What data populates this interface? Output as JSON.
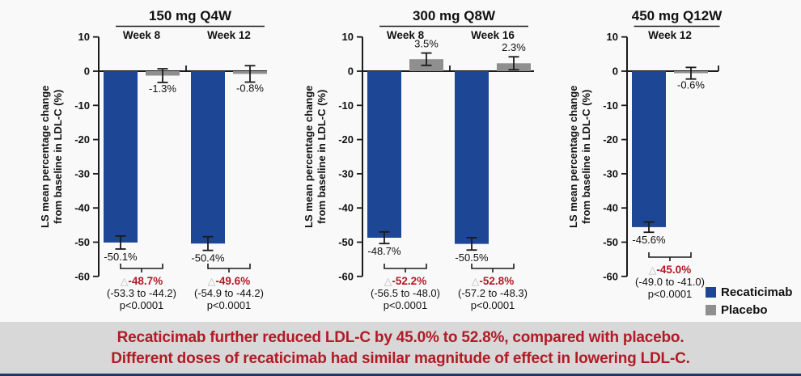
{
  "colors": {
    "recaticimab": "#1d4694",
    "placebo": "#8f8f8f",
    "axis": "#1a1a1a",
    "delta_red": "#b01b26",
    "triangle_gray": "#b8b8b8",
    "banner_bg": "#d8d8d8",
    "banner_text": "#b01b26",
    "bottom_bar": "#1f3864",
    "page_bg": "#f9f9f9"
  },
  "delta_symbol": "△",
  "ylabel": "LS mean percentage change from baseline in LDL-C (%)",
  "ylabel_lines": [
    "LS mean percentage change",
    "from baseline in LDL-C (%)"
  ],
  "legend": {
    "items": [
      {
        "label": "Recaticimab",
        "color_key": "recaticimab"
      },
      {
        "label": "Placebo",
        "color_key": "placebo"
      }
    ]
  },
  "banner": {
    "line1": "Recaticimab further reduced LDL-C by 45.0% to 52.8%, compared with placebo.",
    "line2": "Different doses of recaticimab had similar magnitude of effect in lowering LDL-C."
  },
  "chart_data": [
    {
      "type": "bar",
      "title": "150 mg Q4W",
      "ylabel": "LS mean percentage change from baseline in LDL-C (%)",
      "ylim": [
        -60,
        10
      ],
      "yticks": [
        10,
        0,
        -10,
        -20,
        -30,
        -40,
        -50,
        -60
      ],
      "series_order": [
        "Recaticimab",
        "Placebo"
      ],
      "groups": [
        {
          "label": "Week 8",
          "bars": [
            {
              "series": "Recaticimab",
              "value": -50.1,
              "label": "-50.1%",
              "err": 1.9
            },
            {
              "series": "Placebo",
              "value": -1.3,
              "label": "-1.3%",
              "err": 2.0
            }
          ],
          "difference": {
            "delta": "-48.7%",
            "ci": "(-53.3 to -44.2)",
            "p": "p<0.0001"
          }
        },
        {
          "label": "Week 12",
          "bars": [
            {
              "series": "Recaticimab",
              "value": -50.4,
              "label": "-50.4%",
              "err": 2.0
            },
            {
              "series": "Placebo",
              "value": -0.8,
              "label": "-0.8%",
              "err": 2.4
            }
          ],
          "difference": {
            "delta": "-49.6%",
            "ci": "(-54.9 to -44.2)",
            "p": "p<0.0001"
          }
        }
      ]
    },
    {
      "type": "bar",
      "title": "300 mg Q8W",
      "ylabel": "LS mean percentage change from baseline in LDL-C (%)",
      "ylim": [
        -60,
        10
      ],
      "yticks": [
        10,
        0,
        -10,
        -20,
        -30,
        -40,
        -50,
        -60
      ],
      "series_order": [
        "Recaticimab",
        "Placebo"
      ],
      "groups": [
        {
          "label": "Week 8",
          "bars": [
            {
              "series": "Recaticimab",
              "value": -48.7,
              "label": "-48.7%",
              "err": 1.7
            },
            {
              "series": "Placebo",
              "value": 3.5,
              "label": "3.5%",
              "err": 1.8
            }
          ],
          "difference": {
            "delta": "-52.2%",
            "ci": "(-56.5 to -48.0)",
            "p": "p<0.0001"
          }
        },
        {
          "label": "Week 16",
          "bars": [
            {
              "series": "Recaticimab",
              "value": -50.5,
              "label": "-50.5%",
              "err": 1.8
            },
            {
              "series": "Placebo",
              "value": 2.3,
              "label": "2.3%",
              "err": 1.9
            }
          ],
          "difference": {
            "delta": "-52.8%",
            "ci": "(-57.2 to -48.3)",
            "p": "p<0.0001"
          }
        }
      ]
    },
    {
      "type": "bar",
      "title": "450 mg Q12W",
      "ylabel": "LS mean percentage change from baseline in LDL-C (%)",
      "ylim": [
        -60,
        10
      ],
      "yticks": [
        10,
        0,
        -10,
        -20,
        -30,
        -40,
        -50,
        -60
      ],
      "series_order": [
        "Recaticimab",
        "Placebo"
      ],
      "groups": [
        {
          "label": "Week 12",
          "bars": [
            {
              "series": "Recaticimab",
              "value": -45.6,
              "label": "-45.6%",
              "err": 1.5
            },
            {
              "series": "Placebo",
              "value": -0.6,
              "label": "-0.6%",
              "err": 1.7
            }
          ],
          "difference": {
            "delta": "-45.0%",
            "ci": "(-49.0 to -41.0)",
            "p": "p<0.0001"
          }
        }
      ]
    }
  ]
}
